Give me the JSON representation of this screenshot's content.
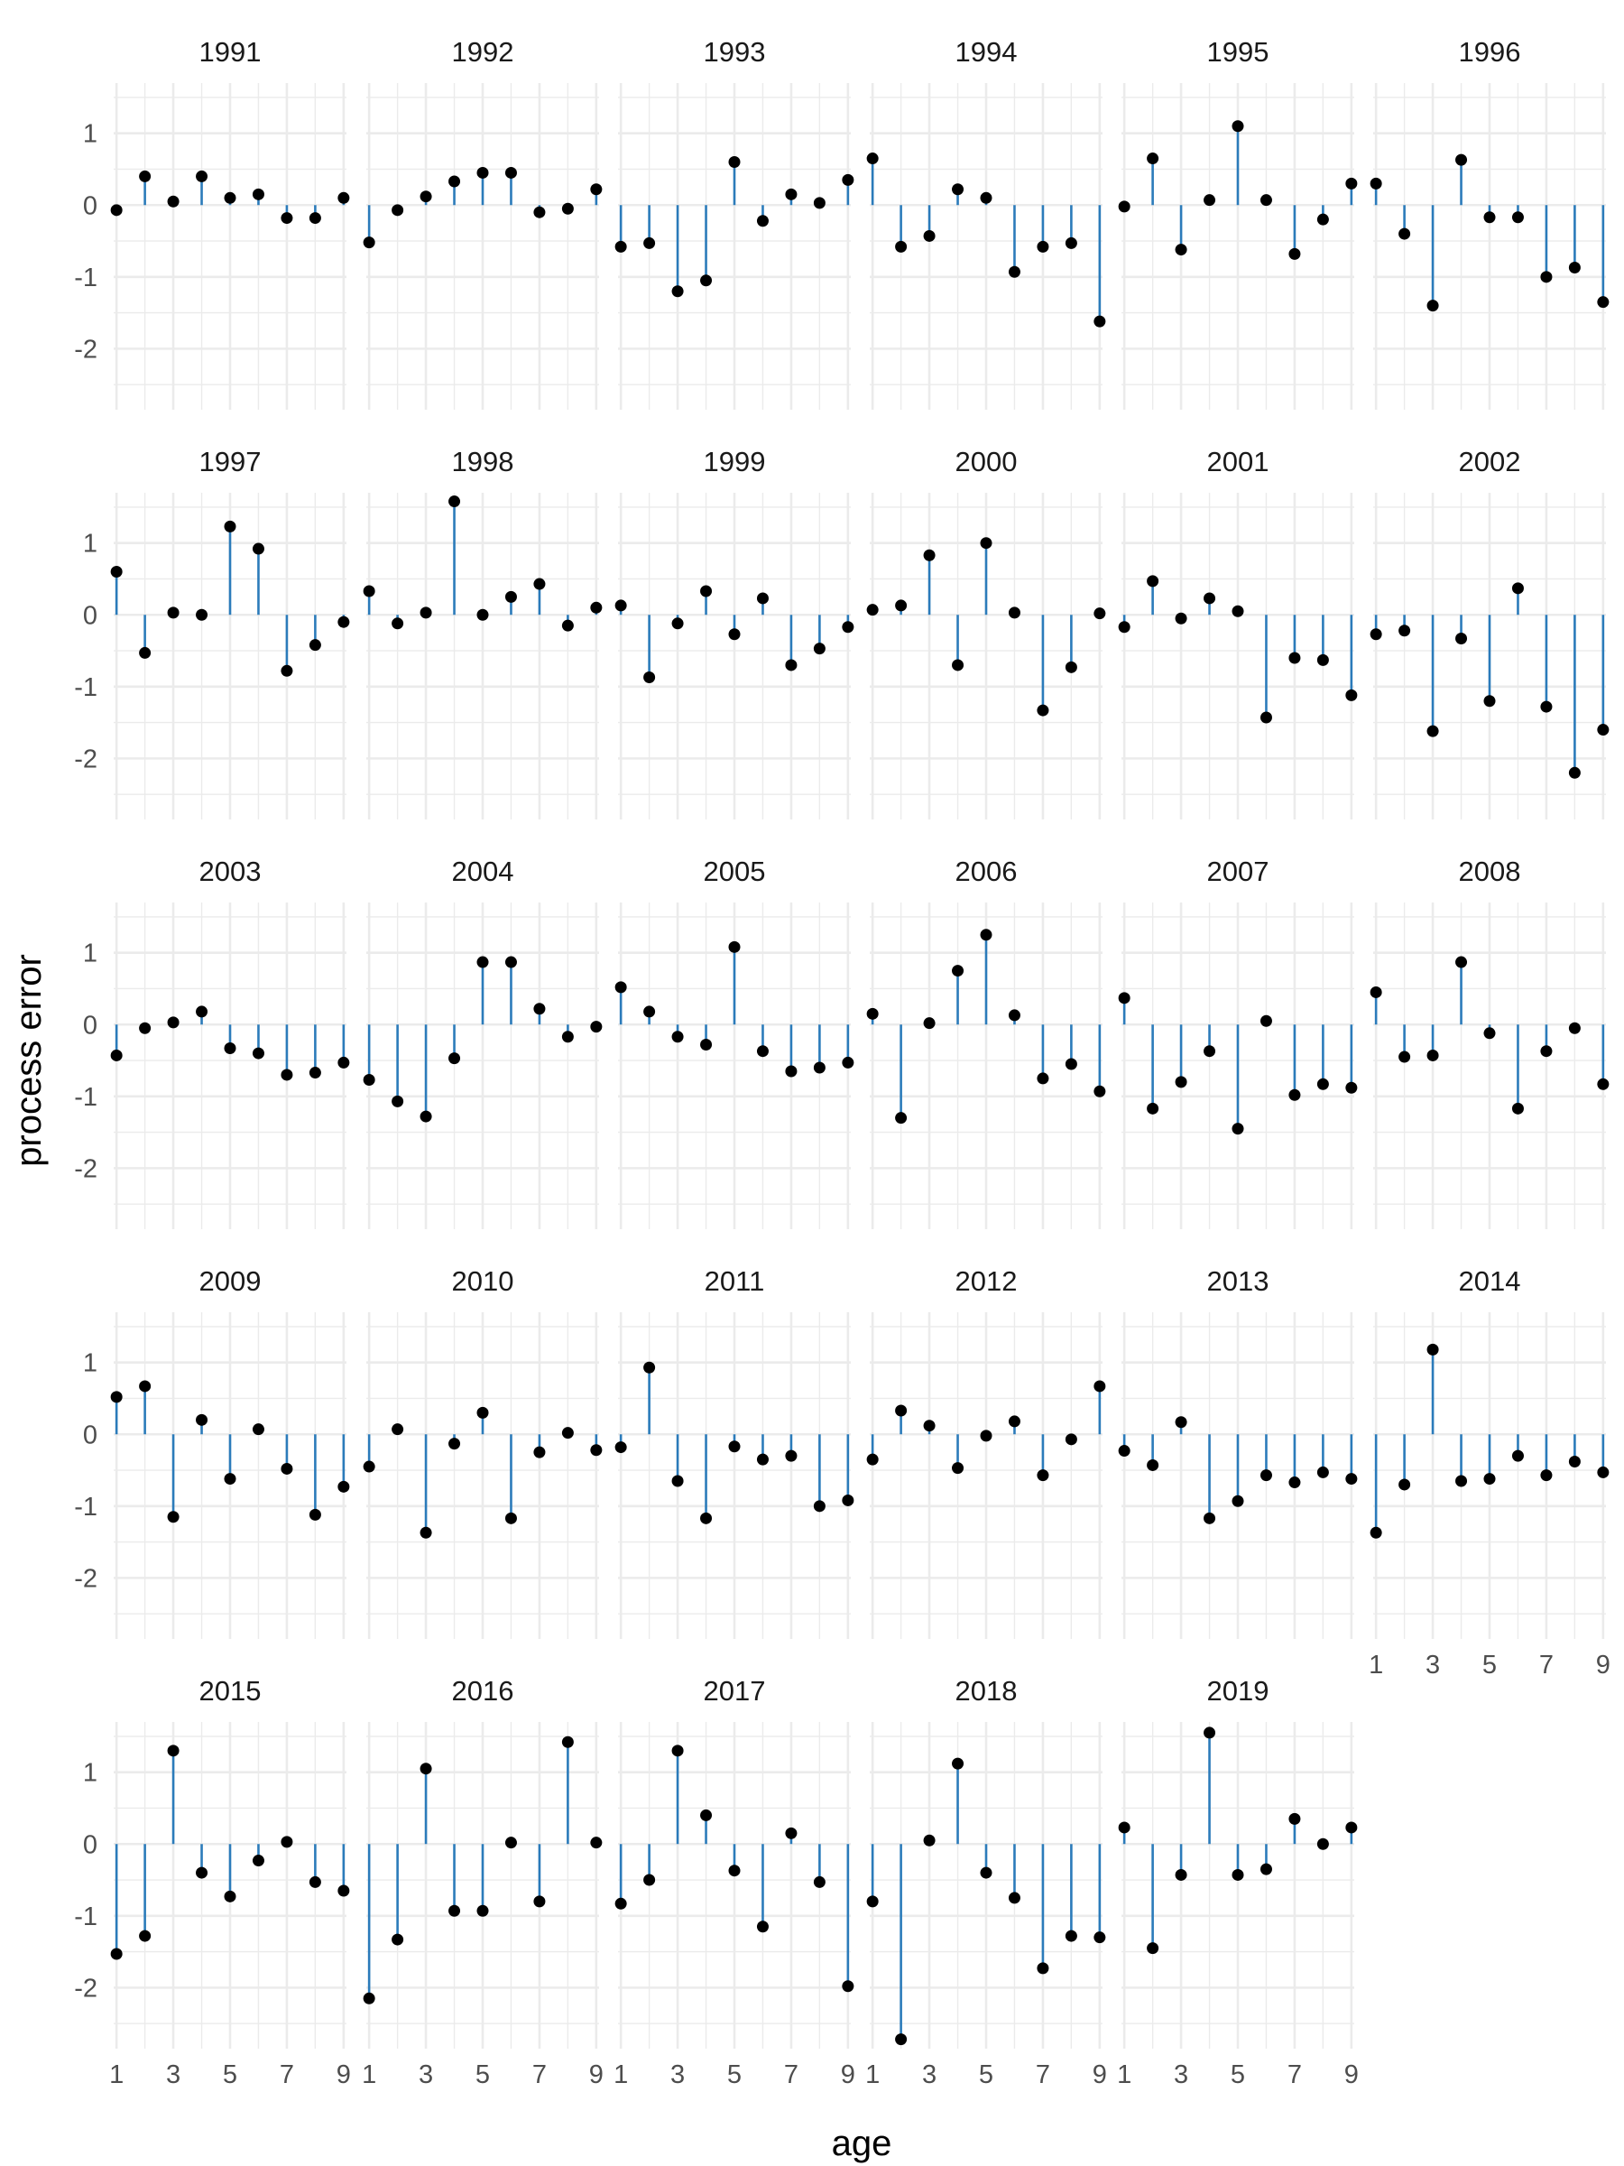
{
  "chart_data": {
    "type": "lollipop",
    "xlabel": "age",
    "ylabel": "process error",
    "x": [
      1,
      2,
      3,
      4,
      5,
      6,
      7,
      8,
      9
    ],
    "x_ticks": [
      "1",
      "3",
      "5",
      "7",
      "9"
    ],
    "y_ticks": [
      "1",
      "0",
      "-1",
      "-2"
    ],
    "ylim": [
      -2.85,
      1.7
    ],
    "xlim": [
      0.9,
      9.1
    ],
    "grid": true,
    "colors": {
      "stem": "#2b7bba",
      "point": "#000000",
      "grid": "#ebebeb"
    },
    "panels": [
      {
        "year": "1991",
        "values": [
          -0.07,
          0.4,
          0.05,
          0.4,
          0.1,
          0.15,
          -0.18,
          -0.18,
          0.1
        ]
      },
      {
        "year": "1992",
        "values": [
          -0.52,
          -0.07,
          0.12,
          0.33,
          0.45,
          0.45,
          -0.1,
          -0.05,
          0.22
        ]
      },
      {
        "year": "1993",
        "values": [
          -0.58,
          -0.53,
          -1.2,
          -1.05,
          0.6,
          -0.22,
          0.15,
          0.03,
          0.35
        ]
      },
      {
        "year": "1994",
        "values": [
          0.65,
          -0.58,
          -0.43,
          0.22,
          0.1,
          -0.93,
          -0.58,
          -0.53,
          -1.62
        ]
      },
      {
        "year": "1995",
        "values": [
          -0.02,
          0.65,
          -0.62,
          0.07,
          1.1,
          0.07,
          -0.68,
          -0.2,
          0.3
        ]
      },
      {
        "year": "1996",
        "values": [
          0.3,
          -0.4,
          -1.4,
          0.63,
          -0.17,
          -0.17,
          -1.0,
          -0.87,
          -1.35
        ]
      },
      {
        "year": "1997",
        "values": [
          0.6,
          -0.53,
          0.03,
          0.0,
          1.23,
          0.92,
          -0.78,
          -0.42,
          -0.1
        ]
      },
      {
        "year": "1998",
        "values": [
          0.33,
          -0.12,
          0.03,
          1.58,
          0.0,
          0.25,
          0.43,
          -0.15,
          0.1
        ]
      },
      {
        "year": "1999",
        "values": [
          0.13,
          -0.87,
          -0.12,
          0.33,
          -0.27,
          0.23,
          -0.7,
          -0.47,
          -0.17
        ]
      },
      {
        "year": "2000",
        "values": [
          0.07,
          0.13,
          0.83,
          -0.7,
          1.0,
          0.03,
          -1.33,
          -0.73,
          0.02
        ]
      },
      {
        "year": "2001",
        "values": [
          -0.17,
          0.47,
          -0.05,
          0.23,
          0.05,
          -1.43,
          -0.6,
          -0.63,
          -1.12
        ]
      },
      {
        "year": "2002",
        "values": [
          -0.27,
          -0.22,
          -1.62,
          -0.33,
          -1.2,
          0.37,
          -1.28,
          -2.2,
          -1.6
        ]
      },
      {
        "year": "2003",
        "values": [
          -0.43,
          -0.05,
          0.03,
          0.18,
          -0.33,
          -0.4,
          -0.7,
          -0.67,
          -0.53
        ]
      },
      {
        "year": "2004",
        "values": [
          -0.77,
          -1.07,
          -1.28,
          -0.47,
          0.87,
          0.87,
          0.22,
          -0.17,
          -0.03
        ]
      },
      {
        "year": "2005",
        "values": [
          0.52,
          0.18,
          -0.17,
          -0.28,
          1.08,
          -0.37,
          -0.65,
          -0.6,
          -0.53
        ]
      },
      {
        "year": "2006",
        "values": [
          0.15,
          -1.3,
          0.02,
          0.75,
          1.25,
          0.13,
          -0.75,
          -0.55,
          -0.93
        ]
      },
      {
        "year": "2007",
        "values": [
          0.37,
          -1.17,
          -0.8,
          -0.37,
          -1.45,
          0.05,
          -0.98,
          -0.83,
          -0.88
        ]
      },
      {
        "year": "2008",
        "values": [
          0.45,
          -0.45,
          -0.43,
          0.87,
          -0.12,
          -1.17,
          -0.37,
          -0.05,
          -0.83
        ]
      },
      {
        "year": "2009",
        "values": [
          0.52,
          0.67,
          -1.15,
          0.2,
          -0.62,
          0.07,
          -0.48,
          -1.12,
          -0.73
        ]
      },
      {
        "year": "2010",
        "values": [
          -0.45,
          0.07,
          -1.37,
          -0.13,
          0.3,
          -1.17,
          -0.25,
          0.02,
          -0.22
        ]
      },
      {
        "year": "2011",
        "values": [
          -0.18,
          0.93,
          -0.65,
          -1.17,
          -0.17,
          -0.35,
          -0.3,
          -1.0,
          -0.92
        ]
      },
      {
        "year": "2012",
        "values": [
          -0.35,
          0.33,
          0.12,
          -0.47,
          -0.02,
          0.18,
          -0.57,
          -0.07,
          0.67
        ]
      },
      {
        "year": "2013",
        "values": [
          -0.23,
          -0.43,
          0.17,
          -1.17,
          -0.93,
          -0.57,
          -0.67,
          -0.53,
          -0.62
        ]
      },
      {
        "year": "2014",
        "values": [
          -1.37,
          -0.7,
          1.18,
          -0.65,
          -0.62,
          -0.3,
          -0.57,
          -0.38,
          -0.53
        ]
      },
      {
        "year": "2015",
        "values": [
          -1.53,
          -1.28,
          1.3,
          -0.4,
          -0.73,
          -0.23,
          0.03,
          -0.53,
          -0.65
        ]
      },
      {
        "year": "2016",
        "values": [
          -2.15,
          -1.33,
          1.05,
          -0.93,
          -0.93,
          0.02,
          -0.8,
          1.42,
          0.02
        ]
      },
      {
        "year": "2017",
        "values": [
          -0.83,
          -0.5,
          1.3,
          0.4,
          -0.37,
          -1.15,
          0.15,
          -0.53,
          -1.98
        ]
      },
      {
        "year": "2018",
        "values": [
          -0.8,
          -2.72,
          0.05,
          1.12,
          -0.4,
          -0.75,
          -1.73,
          -1.28,
          -1.3
        ]
      },
      {
        "year": "2019",
        "values": [
          0.23,
          -1.45,
          -0.43,
          1.55,
          -0.43,
          -0.35,
          0.35,
          0.0,
          0.23
        ]
      }
    ]
  }
}
